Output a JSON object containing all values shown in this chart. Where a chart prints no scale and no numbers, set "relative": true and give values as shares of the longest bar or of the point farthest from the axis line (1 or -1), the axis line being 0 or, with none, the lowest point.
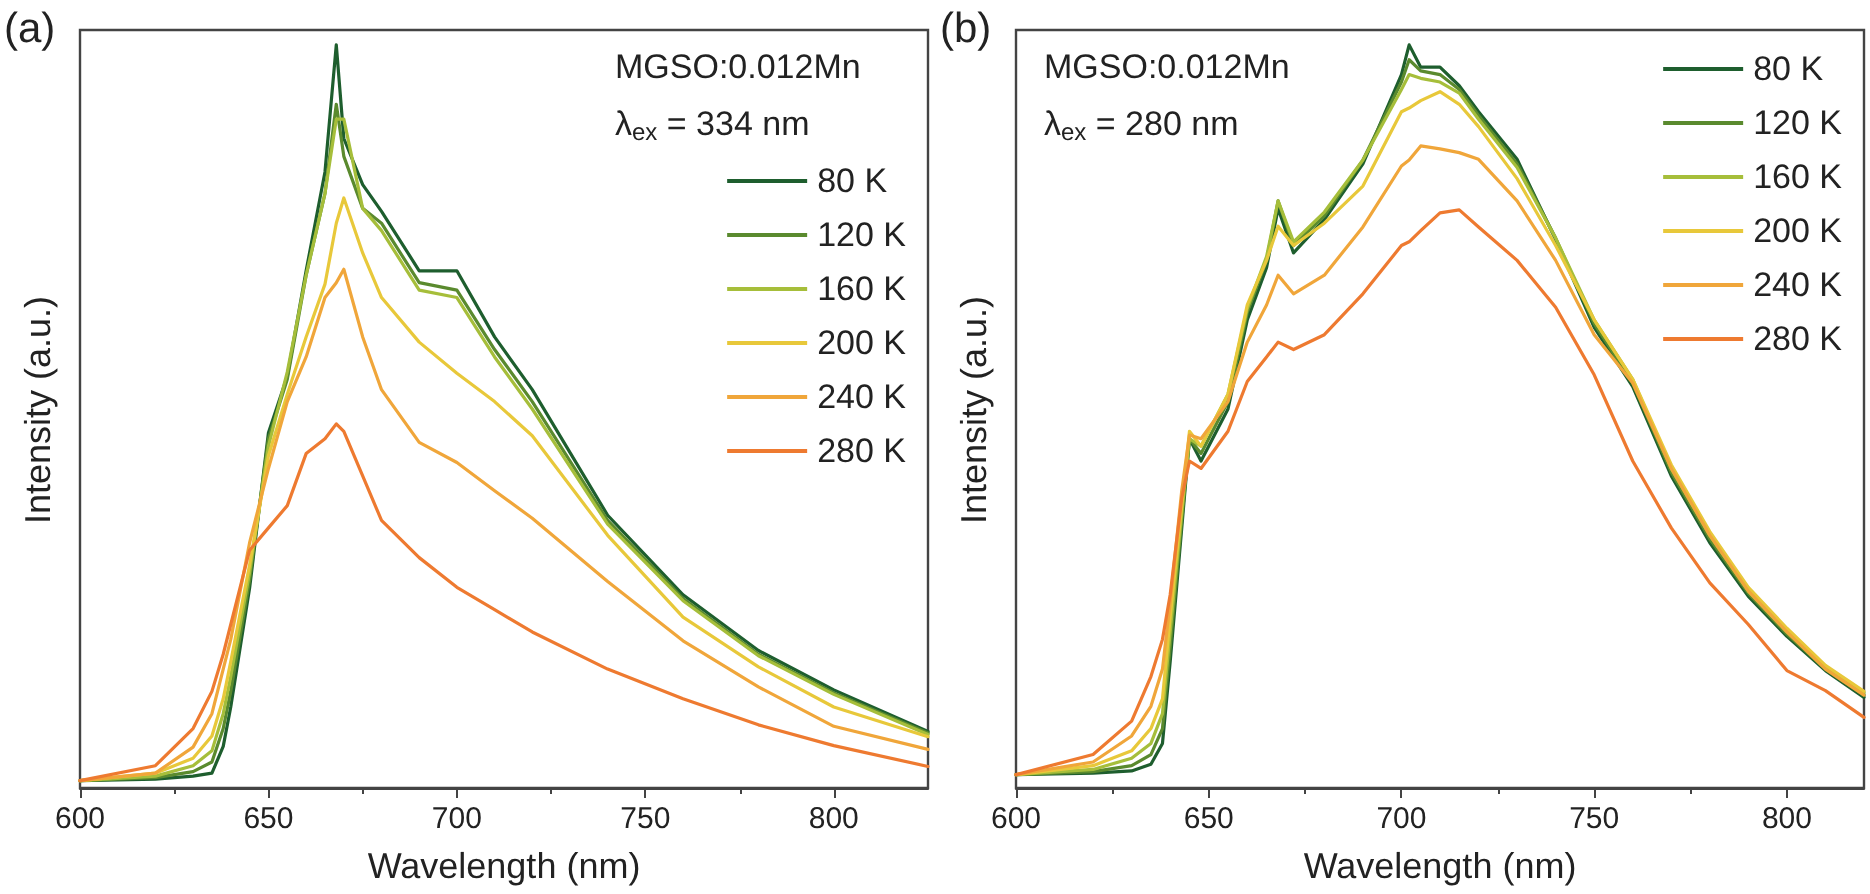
{
  "chart_data": [
    {
      "type": "line",
      "title": "(a)",
      "xlabel": "Wavelength (nm)",
      "ylabel": "Intensity (a.u.)",
      "relative": true,
      "xlim": [
        600,
        825
      ],
      "xticks": [
        600,
        650,
        700,
        750,
        800
      ],
      "grid": false,
      "legend": "top right",
      "marker": "none",
      "annotations": [
        "MGSO:0.012Mn",
        "λ$_{ex}$ = 334 nm"
      ],
      "x": [
        600,
        620,
        630,
        635,
        638,
        640,
        645,
        650,
        655,
        660,
        665,
        668,
        670,
        675,
        680,
        690,
        700,
        710,
        720,
        740,
        760,
        780,
        800,
        825
      ],
      "series": [
        {
          "name": "80 K",
          "color": "#1e5e2e",
          "values": [
            0.01,
            0.012,
            0.016,
            0.02,
            0.056,
            0.109,
            0.269,
            0.478,
            0.554,
            0.696,
            0.829,
            1.0,
            0.874,
            0.812,
            0.776,
            0.696,
            0.696,
            0.607,
            0.536,
            0.367,
            0.26,
            0.185,
            0.132,
            0.076
          ]
        },
        {
          "name": "120 K",
          "color": "#5a8a2e",
          "values": [
            0.01,
            0.014,
            0.022,
            0.035,
            0.08,
            0.13,
            0.28,
            0.47,
            0.55,
            0.69,
            0.8,
            0.92,
            0.85,
            0.78,
            0.76,
            0.68,
            0.67,
            0.59,
            0.52,
            0.36,
            0.255,
            0.18,
            0.128,
            0.074
          ]
        },
        {
          "name": "160 K",
          "color": "#a6be3a",
          "values": [
            0.01,
            0.016,
            0.03,
            0.05,
            0.1,
            0.15,
            0.29,
            0.46,
            0.56,
            0.69,
            0.8,
            0.9,
            0.9,
            0.78,
            0.75,
            0.67,
            0.66,
            0.58,
            0.51,
            0.355,
            0.252,
            0.178,
            0.126,
            0.072
          ]
        },
        {
          "name": "200 K",
          "color": "#e8c83a",
          "values": [
            0.01,
            0.02,
            0.04,
            0.07,
            0.12,
            0.17,
            0.3,
            0.447,
            0.53,
            0.607,
            0.678,
            0.76,
            0.794,
            0.72,
            0.66,
            0.6,
            0.558,
            0.52,
            0.474,
            0.34,
            0.23,
            0.163,
            0.109,
            0.069
          ]
        },
        {
          "name": "240 K",
          "color": "#f0a63a",
          "values": [
            0.01,
            0.02,
            0.055,
            0.1,
            0.16,
            0.2,
            0.33,
            0.43,
            0.52,
            0.58,
            0.66,
            0.68,
            0.698,
            0.607,
            0.536,
            0.465,
            0.438,
            0.4,
            0.363,
            0.278,
            0.198,
            0.136,
            0.083,
            0.052
          ]
        },
        {
          "name": "280 K",
          "color": "#ee7a30",
          "values": [
            0.01,
            0.03,
            0.08,
            0.13,
            0.18,
            0.22,
            0.32,
            0.35,
            0.38,
            0.45,
            0.47,
            0.49,
            0.48,
            0.42,
            0.36,
            0.31,
            0.27,
            0.24,
            0.21,
            0.16,
            0.12,
            0.085,
            0.057,
            0.029
          ]
        }
      ]
    },
    {
      "type": "line",
      "title": "(b)",
      "xlabel": "Wavelength (nm)",
      "ylabel": "Intensity (a.u.)",
      "relative": true,
      "xlim": [
        600,
        820
      ],
      "xticks": [
        600,
        650,
        700,
        750,
        800
      ],
      "grid": false,
      "legend": "top right",
      "marker": "none",
      "annotations": [
        "MGSO:0.012Mn",
        "λ$_{ex}$ = 280 nm"
      ],
      "x": [
        600,
        620,
        630,
        635,
        638,
        640,
        643,
        645,
        648,
        655,
        660,
        665,
        668,
        672,
        680,
        690,
        700,
        702,
        705,
        710,
        715,
        720,
        730,
        740,
        750,
        760,
        770,
        780,
        790,
        800,
        810,
        820
      ],
      "series": [
        {
          "name": "80 K",
          "color": "#1e5e2e",
          "values": [
            0.018,
            0.02,
            0.023,
            0.032,
            0.06,
            0.17,
            0.35,
            0.47,
            0.44,
            0.51,
            0.63,
            0.7,
            0.78,
            0.72,
            0.765,
            0.84,
            0.96,
            1.0,
            0.97,
            0.97,
            0.945,
            0.91,
            0.846,
            0.738,
            0.62,
            0.54,
            0.42,
            0.33,
            0.258,
            0.204,
            0.158,
            0.122
          ]
        },
        {
          "name": "120 K",
          "color": "#5a8a2e",
          "values": [
            0.018,
            0.022,
            0.03,
            0.045,
            0.08,
            0.19,
            0.36,
            0.47,
            0.45,
            0.52,
            0.64,
            0.71,
            0.79,
            0.73,
            0.77,
            0.845,
            0.95,
            0.98,
            0.965,
            0.96,
            0.94,
            0.905,
            0.84,
            0.74,
            0.625,
            0.545,
            0.425,
            0.335,
            0.262,
            0.207,
            0.16,
            0.125
          ]
        },
        {
          "name": "160 K",
          "color": "#a6be3a",
          "values": [
            0.018,
            0.025,
            0.04,
            0.06,
            0.1,
            0.21,
            0.37,
            0.47,
            0.46,
            0.53,
            0.645,
            0.715,
            0.79,
            0.735,
            0.775,
            0.845,
            0.94,
            0.96,
            0.955,
            0.95,
            0.935,
            0.9,
            0.835,
            0.74,
            0.63,
            0.55,
            0.43,
            0.34,
            0.265,
            0.21,
            0.162,
            0.128
          ]
        },
        {
          "name": "200 K",
          "color": "#e8c83a",
          "values": [
            0.018,
            0.03,
            0.05,
            0.08,
            0.12,
            0.23,
            0.38,
            0.48,
            0.46,
            0.53,
            0.65,
            0.71,
            0.756,
            0.73,
            0.76,
            0.81,
            0.91,
            0.915,
            0.925,
            0.937,
            0.92,
            0.89,
            0.82,
            0.73,
            0.63,
            0.55,
            0.435,
            0.345,
            0.27,
            0.215,
            0.165,
            0.13
          ]
        },
        {
          "name": "240 K",
          "color": "#f0a63a",
          "values": [
            0.018,
            0.035,
            0.07,
            0.11,
            0.16,
            0.25,
            0.4,
            0.475,
            0.47,
            0.52,
            0.6,
            0.65,
            0.69,
            0.665,
            0.69,
            0.755,
            0.837,
            0.845,
            0.864,
            0.86,
            0.855,
            0.846,
            0.79,
            0.71,
            0.61,
            0.545,
            0.43,
            0.34,
            0.265,
            0.21,
            0.16,
            0.125
          ]
        },
        {
          "name": "280 K",
          "color": "#ee7a30",
          "values": [
            0.018,
            0.045,
            0.09,
            0.15,
            0.2,
            0.26,
            0.39,
            0.44,
            0.43,
            0.48,
            0.547,
            0.58,
            0.6,
            0.59,
            0.61,
            0.665,
            0.73,
            0.735,
            0.75,
            0.774,
            0.778,
            0.755,
            0.71,
            0.647,
            0.556,
            0.44,
            0.35,
            0.276,
            0.22,
            0.158,
            0.131,
            0.095
          ]
        }
      ]
    }
  ]
}
